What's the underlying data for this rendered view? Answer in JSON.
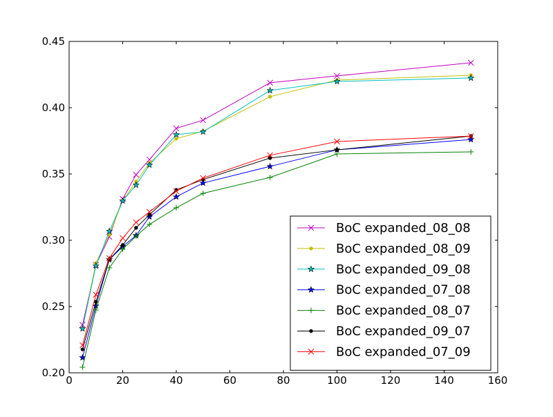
{
  "chart_data": {
    "type": "line",
    "title": "",
    "xlabel": "",
    "ylabel": "",
    "xlim": [
      0,
      160
    ],
    "ylim": [
      0.2,
      0.45
    ],
    "xticks": [
      0,
      20,
      40,
      60,
      80,
      100,
      120,
      140,
      160
    ],
    "yticks": [
      0.2,
      0.25,
      0.3,
      0.35,
      0.4,
      0.45
    ],
    "xtick_labels": [
      "0",
      "20",
      "40",
      "60",
      "80",
      "100",
      "120",
      "140",
      "160"
    ],
    "ytick_labels": [
      "0.20",
      "0.25",
      "0.30",
      "0.35",
      "0.40",
      "0.45"
    ],
    "grid": false,
    "legend_position": "lower-right",
    "x": [
      5,
      10,
      15,
      20,
      25,
      30,
      40,
      50,
      75,
      100,
      150
    ],
    "series": [
      {
        "name": "BoC expanded_08_08",
        "color": "#bf00bf",
        "marker": "x",
        "values": [
          0.2362,
          0.2813,
          0.3026,
          0.3312,
          0.3495,
          0.3609,
          0.3844,
          0.3906,
          0.4188,
          0.424,
          0.4339
        ]
      },
      {
        "name": "BoC expanded_08_09",
        "color": "#bfbf00",
        "marker": "dot",
        "values": [
          0.2333,
          0.2828,
          0.3042,
          0.3297,
          0.3443,
          0.3583,
          0.3766,
          0.3823,
          0.4083,
          0.4208,
          0.4245
        ]
      },
      {
        "name": "BoC expanded_09_08",
        "color": "#00bfbf",
        "marker": "star",
        "values": [
          0.2333,
          0.2807,
          0.3068,
          0.3297,
          0.3417,
          0.3568,
          0.3797,
          0.3818,
          0.413,
          0.4198,
          0.4224
        ]
      },
      {
        "name": "BoC expanded_07_08",
        "color": "#0000ff",
        "marker": "star",
        "values": [
          0.2115,
          0.2505,
          0.2854,
          0.2953,
          0.3036,
          0.3177,
          0.3328,
          0.3432,
          0.3557,
          0.3682,
          0.376
        ]
      },
      {
        "name": "BoC expanded_08_07",
        "color": "#008000",
        "marker": "plus",
        "values": [
          0.2042,
          0.2474,
          0.2792,
          0.2932,
          0.3031,
          0.312,
          0.3245,
          0.3354,
          0.3474,
          0.3651,
          0.3667
        ]
      },
      {
        "name": "BoC expanded_09_07",
        "color": "#000000",
        "marker": "dot",
        "values": [
          0.2177,
          0.2536,
          0.2854,
          0.2964,
          0.3094,
          0.3193,
          0.338,
          0.3458,
          0.362,
          0.3682,
          0.3786
        ]
      },
      {
        "name": "BoC expanded_07_09",
        "color": "#ff0000",
        "marker": "x",
        "values": [
          0.2208,
          0.2589,
          0.2865,
          0.3016,
          0.3135,
          0.3214,
          0.337,
          0.3469,
          0.3641,
          0.3745,
          0.3786
        ]
      }
    ]
  }
}
